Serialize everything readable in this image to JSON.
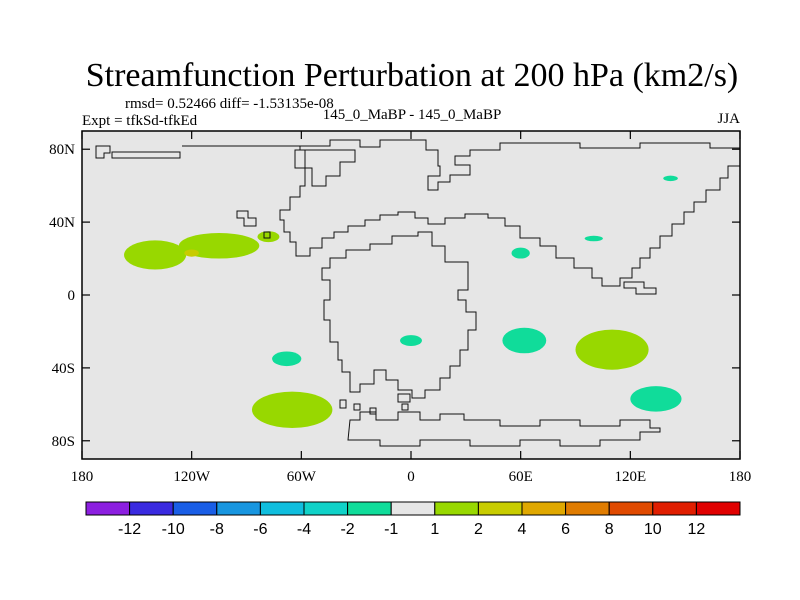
{
  "chart_data": {
    "type": "heatmap",
    "title": "Streamfunction Perturbation at 200 hPa (km2/s)",
    "stats": "rmsd= 0.52466 diff= -1.53135e-08",
    "left_label": "Expt = tfkSd-tfkEd",
    "center_label": "145_0_MaBP - 145_0_MaBP",
    "right_label": "JJA",
    "xlim": [
      -180,
      180
    ],
    "ylim": [
      -90,
      90
    ],
    "x_ticks": [
      {
        "value": -180,
        "label": "180"
      },
      {
        "value": -120,
        "label": "120W"
      },
      {
        "value": -60,
        "label": "60W"
      },
      {
        "value": 0,
        "label": "0"
      },
      {
        "value": 60,
        "label": "60E"
      },
      {
        "value": 120,
        "label": "120E"
      },
      {
        "value": 180,
        "label": "180"
      }
    ],
    "y_ticks": [
      {
        "value": 80,
        "label": "80N"
      },
      {
        "value": 40,
        "label": "40N"
      },
      {
        "value": 0,
        "label": "0"
      },
      {
        "value": -40,
        "label": "40S"
      },
      {
        "value": -80,
        "label": "80S"
      }
    ],
    "background_value_color": "#e6e6e6",
    "colorbar": {
      "colors": [
        "#8c1fe0",
        "#3a2ae0",
        "#1a5ee6",
        "#1896e0",
        "#10bede",
        "#10d2c8",
        "#10dc9a",
        "#e6e6e6",
        "#98d800",
        "#c8cc00",
        "#e0a800",
        "#e07c00",
        "#e04a00",
        "#e01e00",
        "#e00000"
      ],
      "labels": [
        "-12",
        "-10",
        "-8",
        "-6",
        "-4",
        "-2",
        "-1",
        "1",
        "2",
        "4",
        "6",
        "8",
        "10",
        "12"
      ]
    },
    "anomalies": [
      {
        "lon": -140,
        "lat": 22,
        "rlon": 17,
        "rlat": 8,
        "range": "1 to 2",
        "color": "#98d800"
      },
      {
        "lon": -105,
        "lat": 27,
        "rlon": 22,
        "rlat": 7,
        "range": "1 to 2",
        "color": "#98d800"
      },
      {
        "lon": -78,
        "lat": 32,
        "rlon": 6,
        "rlat": 3,
        "range": "1 to 2",
        "color": "#98d800"
      },
      {
        "lon": -120,
        "lat": 23,
        "rlon": 4,
        "rlat": 2,
        "range": "2 to 4",
        "color": "#c8cc00"
      },
      {
        "lon": -65,
        "lat": -63,
        "rlon": 22,
        "rlat": 10,
        "range": "1 to 2",
        "color": "#98d800"
      },
      {
        "lon": -68,
        "lat": -35,
        "rlon": 8,
        "rlat": 4,
        "range": "-2 to -1",
        "color": "#10dc9a"
      },
      {
        "lon": 0,
        "lat": -25,
        "rlon": 6,
        "rlat": 3,
        "range": "-2 to -1",
        "color": "#10dc9a"
      },
      {
        "lon": 62,
        "lat": -25,
        "rlon": 12,
        "rlat": 7,
        "range": "-2 to -1",
        "color": "#10dc9a"
      },
      {
        "lon": 60,
        "lat": 23,
        "rlon": 5,
        "rlat": 3,
        "range": "-2 to -1",
        "color": "#10dc9a"
      },
      {
        "lon": 100,
        "lat": 31,
        "rlon": 5,
        "rlat": 1.5,
        "range": "-2 to -1",
        "color": "#10dc9a"
      },
      {
        "lon": 142,
        "lat": 64,
        "rlon": 4,
        "rlat": 1.5,
        "range": "-2 to -1",
        "color": "#10dc9a"
      },
      {
        "lon": 110,
        "lat": -30,
        "rlon": 20,
        "rlat": 11,
        "range": "1 to 2",
        "color": "#98d800"
      },
      {
        "lon": 134,
        "lat": -57,
        "rlon": 14,
        "rlat": 7,
        "range": "-2 to -1",
        "color": "#10dc9a"
      }
    ]
  }
}
